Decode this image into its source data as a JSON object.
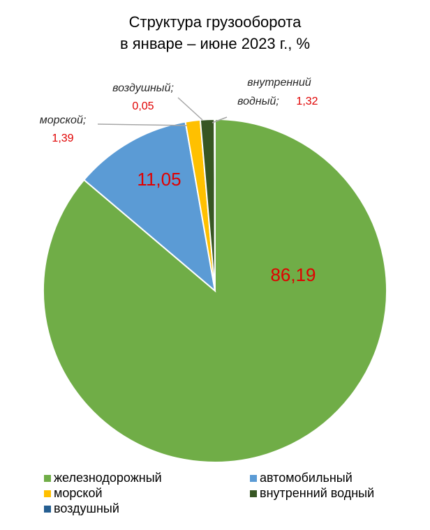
{
  "chart_data": {
    "type": "pie",
    "title": "Структура грузооборота",
    "subtitle": "в январе – июне 2023 г., %",
    "categories": [
      "железнодорожный",
      "автомобильный",
      "морской",
      "внутренний водный",
      "воздушный"
    ],
    "values": [
      86.19,
      11.05,
      1.39,
      1.32,
      0.05
    ],
    "value_labels": [
      "86,19",
      "11,05",
      "1,39",
      "1,32",
      "0,05"
    ],
    "callout_names": [
      null,
      null,
      [
        "морской;"
      ],
      [
        "внутренний",
        "водный;"
      ],
      [
        "воздушный;"
      ]
    ],
    "colors": [
      "#70ad47",
      "#5b9bd5",
      "#ffc000",
      "#375623",
      "#255e91"
    ],
    "legend": "bottom"
  }
}
